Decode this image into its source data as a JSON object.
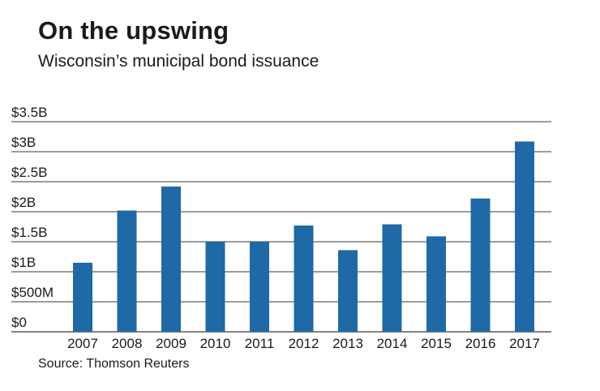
{
  "header": {
    "title": "On the upswing",
    "subtitle": "Wisconsin’s municipal bond issuance"
  },
  "footer": {
    "source": "Source: Thomson Reuters"
  },
  "colors": {
    "bar": "#1f69a6",
    "grid": "#3a3a3a",
    "text": "#1a1a1a"
  },
  "chart_data": {
    "type": "bar",
    "title": "On the upswing",
    "subtitle": "Wisconsin’s municipal bond issuance",
    "xlabel": "",
    "ylabel": "",
    "categories": [
      "2007",
      "2008",
      "2009",
      "2010",
      "2011",
      "2012",
      "2013",
      "2014",
      "2015",
      "2016",
      "2017"
    ],
    "series": [
      {
        "name": "Municipal bond issuance ($B)",
        "values": [
          1.15,
          2.02,
          2.42,
          1.5,
          1.5,
          1.77,
          1.36,
          1.79,
          1.59,
          2.22,
          3.17
        ]
      }
    ],
    "ylim": [
      0,
      3.5
    ],
    "yticks": [
      0,
      0.5,
      1,
      1.5,
      2,
      2.5,
      3,
      3.5
    ],
    "ytick_labels": [
      "$0",
      "$500M",
      "$1B",
      "$1.5B",
      "$2B",
      "$2.5B",
      "$3B",
      "$3.5B"
    ],
    "grid": true,
    "legend": "none",
    "source": "Source: Thomson Reuters"
  }
}
